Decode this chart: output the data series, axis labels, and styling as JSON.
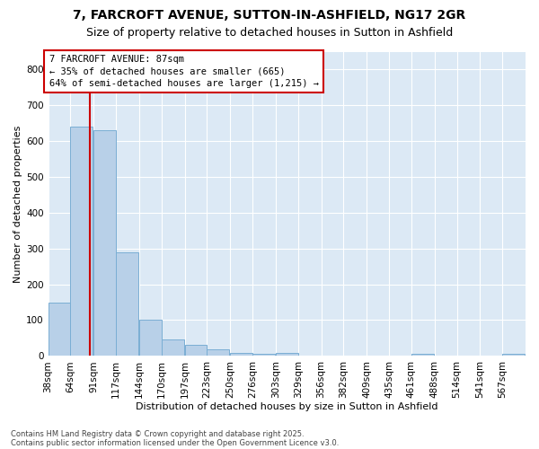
{
  "title1": "7, FARCROFT AVENUE, SUTTON-IN-ASHFIELD, NG17 2GR",
  "title2": "Size of property relative to detached houses in Sutton in Ashfield",
  "xlabel": "Distribution of detached houses by size in Sutton in Ashfield",
  "ylabel": "Number of detached properties",
  "footer1": "Contains HM Land Registry data © Crown copyright and database right 2025.",
  "footer2": "Contains public sector information licensed under the Open Government Licence v3.0.",
  "annotation_line1": "7 FARCROFT AVENUE: 87sqm",
  "annotation_line2": "← 35% of detached houses are smaller (665)",
  "annotation_line3": "64% of semi-detached houses are larger (1,215) →",
  "property_size": 87,
  "bins": [
    38,
    64,
    91,
    117,
    144,
    170,
    197,
    223,
    250,
    276,
    303,
    329,
    356,
    382,
    409,
    435,
    461,
    488,
    514,
    541,
    567,
    594
  ],
  "values": [
    150,
    640,
    630,
    290,
    100,
    45,
    32,
    18,
    8,
    5,
    8,
    0,
    0,
    0,
    0,
    0,
    5,
    0,
    0,
    0,
    5
  ],
  "bar_color": "#b8d0e8",
  "bar_edge_color": "#7aaed4",
  "vline_color": "#cc0000",
  "annotation_box_color": "#cc0000",
  "background_color": "#dce9f5",
  "grid_color": "#ffffff",
  "ylim": [
    0,
    850
  ],
  "yticks": [
    0,
    100,
    200,
    300,
    400,
    500,
    600,
    700,
    800
  ],
  "title1_fontsize": 10,
  "title2_fontsize": 9,
  "ylabel_fontsize": 8,
  "xlabel_fontsize": 8,
  "tick_fontsize": 7.5,
  "annotation_fontsize": 7.5,
  "footer_fontsize": 6
}
